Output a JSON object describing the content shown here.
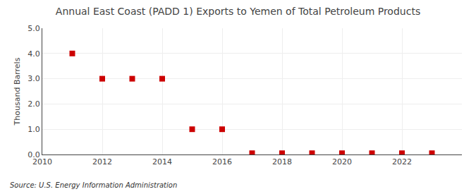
{
  "chart_data": {
    "type": "scatter",
    "title": "Annual East Coast (PADD 1) Exports to Yemen of Total Petroleum Products",
    "ylabel": "Thousand Barrels",
    "annotations": [
      "Source: U.S. Energy Information Administration"
    ],
    "x": [
      2011,
      2012,
      2013,
      2014,
      2015,
      2016,
      2017,
      2018,
      2019,
      2020,
      2021,
      2022,
      2023
    ],
    "values": [
      4.0,
      3.0,
      3.0,
      3.0,
      1.0,
      1.0,
      0.05,
      0.05,
      0.05,
      0.05,
      0.05,
      0.05,
      0.05
    ],
    "color": "#cc0000",
    "marker": "square",
    "xlim": [
      2010,
      2024
    ],
    "xticks": [
      2010,
      2012,
      2014,
      2016,
      2018,
      2020,
      2022
    ],
    "ylim": [
      0.0,
      5.0
    ],
    "yticks": [
      {
        "value": 0.0,
        "label": "0.0"
      },
      {
        "value": 1.0,
        "label": "1.0"
      },
      {
        "value": 2.0,
        "label": "2.0"
      },
      {
        "value": 3.0,
        "label": "3.0"
      },
      {
        "value": 4.0,
        "label": "4.0"
      },
      {
        "value": 5.0,
        "label": "5.0"
      }
    ],
    "grid": true
  }
}
